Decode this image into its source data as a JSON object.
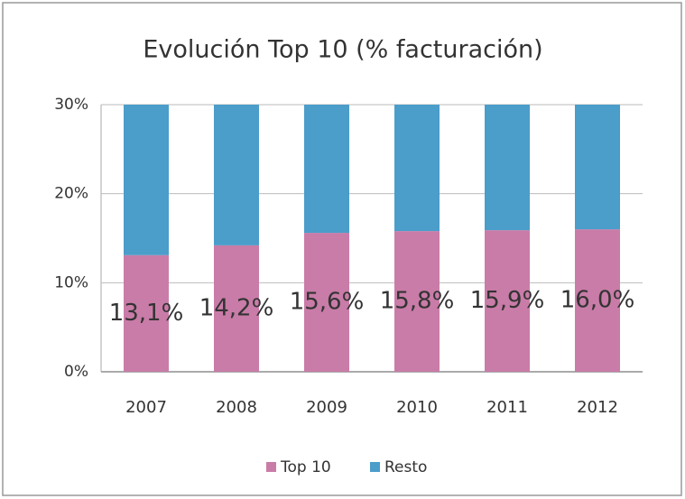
{
  "chart_data": {
    "type": "bar",
    "stacked": true,
    "title": "Evolución Top 10 (% facturación)",
    "categories": [
      "2007",
      "2008",
      "2009",
      "2010",
      "2011",
      "2012"
    ],
    "series": [
      {
        "name": "Top 10",
        "color": "#c97ca8",
        "values": [
          13.1,
          14.2,
          15.6,
          15.8,
          15.9,
          16.0
        ],
        "value_labels": [
          "13,1%",
          "14,2%",
          "15,6%",
          "15,8%",
          "15,9%",
          "16,0%"
        ]
      },
      {
        "name": "Resto",
        "color": "#4b9dca",
        "values": [
          16.9,
          15.8,
          14.4,
          14.2,
          14.1,
          14.0
        ]
      }
    ],
    "ylim": [
      0,
      30
    ],
    "yticks": [
      {
        "value": 0,
        "label": "0%"
      },
      {
        "value": 10,
        "label": "10%"
      },
      {
        "value": 20,
        "label": "20%"
      },
      {
        "value": 30,
        "label": "30%"
      }
    ],
    "grid": true,
    "legend": "bottom"
  }
}
